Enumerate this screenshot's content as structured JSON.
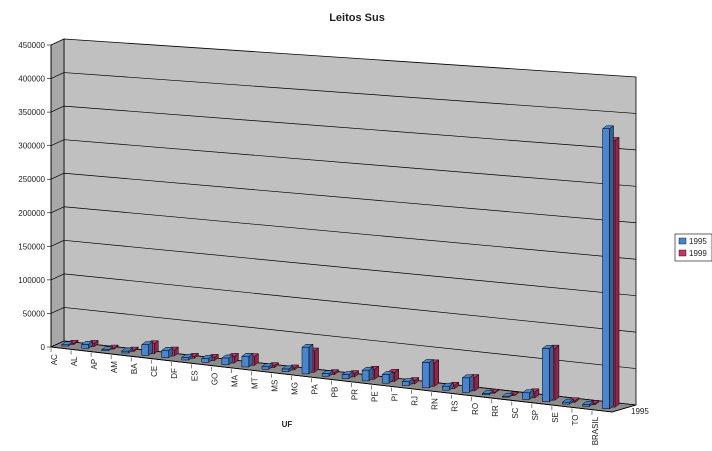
{
  "chart_data": {
    "type": "bar",
    "title": "Leitos Sus",
    "xlabel": "UF",
    "ylabel": "",
    "depth_label": "1995",
    "categories": [
      "AC",
      "AL",
      "AP",
      "AM",
      "BA",
      "CE",
      "DF",
      "ES",
      "GO",
      "MA",
      "MT",
      "MS",
      "MG",
      "PA",
      "PB",
      "PR",
      "PE",
      "PI",
      "RJ",
      "RN",
      "RS",
      "RO",
      "RR",
      "SC",
      "SP",
      "SE",
      "TO",
      "BRASIL"
    ],
    "series": [
      {
        "name": "1995",
        "color": "#4a86d0",
        "values": [
          2000,
          6000,
          1500,
          3000,
          16000,
          11000,
          4000,
          6000,
          10000,
          16000,
          4000,
          4000,
          40000,
          4000,
          6000,
          16000,
          13000,
          6000,
          38000,
          6000,
          22000,
          2000,
          1000,
          10000,
          80000,
          3000,
          3000,
          420000
        ]
      },
      {
        "name": "1999",
        "color": "#c8346a",
        "values": [
          1800,
          5000,
          1500,
          2000,
          15000,
          9000,
          3000,
          5000,
          10000,
          13000,
          3000,
          3000,
          32000,
          3000,
          5000,
          15000,
          14000,
          5000,
          35000,
          5000,
          20000,
          1500,
          800,
          9000,
          78000,
          2500,
          2000,
          400000
        ]
      }
    ],
    "yaxis": {
      "min": 0,
      "max": 450000,
      "step": 50000,
      "tick_labels": [
        "0",
        "50000",
        "100000",
        "150000",
        "200000",
        "250000",
        "300000",
        "350000",
        "400000",
        "450000"
      ]
    },
    "grid": true,
    "legend_position": "right"
  }
}
